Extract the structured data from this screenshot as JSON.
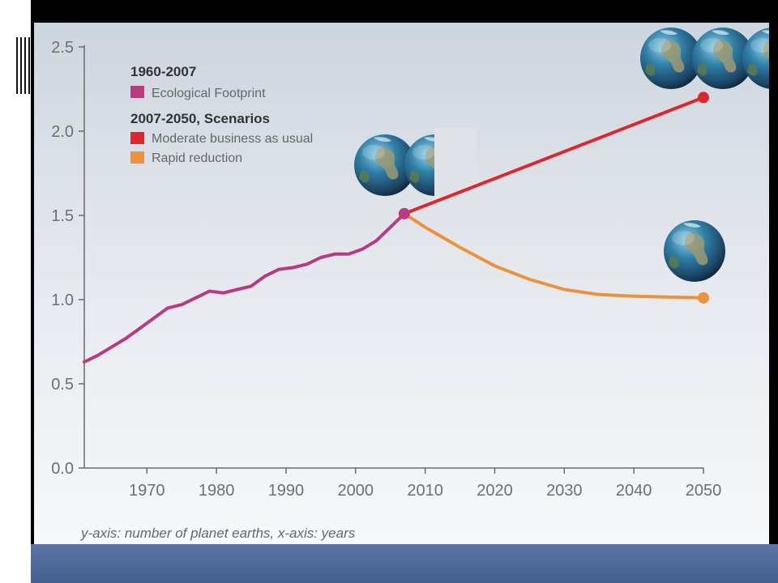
{
  "chart_data": {
    "type": "line",
    "x_ticks": [
      1970,
      1980,
      1990,
      2000,
      2010,
      2020,
      2030,
      2040,
      2050
    ],
    "y_ticks": [
      "0.0",
      "0.5",
      "1.0",
      "1.5",
      "2.0",
      "2.5"
    ],
    "xlim": [
      1961,
      2050
    ],
    "ylim": [
      0,
      2.5
    ],
    "grid": false,
    "legend_position": "top-left",
    "legend_groups": [
      {
        "heading": "1960-2007",
        "entries": [
          {
            "label": "Ecological Footprint",
            "color": "#b93a7e"
          }
        ]
      },
      {
        "heading": "2007-2050, Scenarios",
        "entries": [
          {
            "label": "Moderate business as usual",
            "color": "#e0262a"
          },
          {
            "label": "Rapid reduction",
            "color": "#ee923a"
          }
        ]
      }
    ],
    "series": [
      {
        "name": "Ecological Footprint",
        "color": "#b93a7e",
        "endpoint_marker": true,
        "x": [
          1961,
          1963,
          1965,
          1967,
          1969,
          1971,
          1973,
          1975,
          1977,
          1979,
          1981,
          1983,
          1985,
          1987,
          1989,
          1991,
          1993,
          1995,
          1997,
          1999,
          2001,
          2003,
          2005,
          2007
        ],
        "y": [
          0.63,
          0.67,
          0.72,
          0.77,
          0.83,
          0.89,
          0.95,
          0.97,
          1.01,
          1.05,
          1.04,
          1.06,
          1.08,
          1.14,
          1.18,
          1.19,
          1.21,
          1.25,
          1.27,
          1.27,
          1.3,
          1.35,
          1.43,
          1.51
        ]
      },
      {
        "name": "Moderate business as usual",
        "color": "#e0262a",
        "endpoint_marker": true,
        "x": [
          2007,
          2050
        ],
        "y": [
          1.51,
          2.2
        ]
      },
      {
        "name": "Rapid reduction",
        "color": "#ee923a",
        "endpoint_marker": true,
        "x": [
          2007,
          2010,
          2015,
          2020,
          2025,
          2030,
          2035,
          2040,
          2045,
          2050
        ],
        "y": [
          1.51,
          1.43,
          1.31,
          1.2,
          1.12,
          1.06,
          1.03,
          1.02,
          1.015,
          1.01
        ]
      }
    ],
    "annotations": [
      {
        "type": "earth-globes",
        "count": 2,
        "near": "2007 value"
      },
      {
        "type": "earth-globes",
        "count": 3,
        "near": "2050 business as usual"
      },
      {
        "type": "earth-globes",
        "count": 1,
        "near": "2050 rapid reduction"
      }
    ],
    "footnote": "y-axis: number of planet earths, x-axis: years"
  },
  "colors": {
    "slide_bottom": "#4f6a9a",
    "panel": "#e6eaee",
    "axis": "#666666"
  },
  "decorations": {
    "left_bars": [
      "#e3167f",
      "#3b4c6b",
      "#f6b319",
      "#e3167f"
    ]
  }
}
